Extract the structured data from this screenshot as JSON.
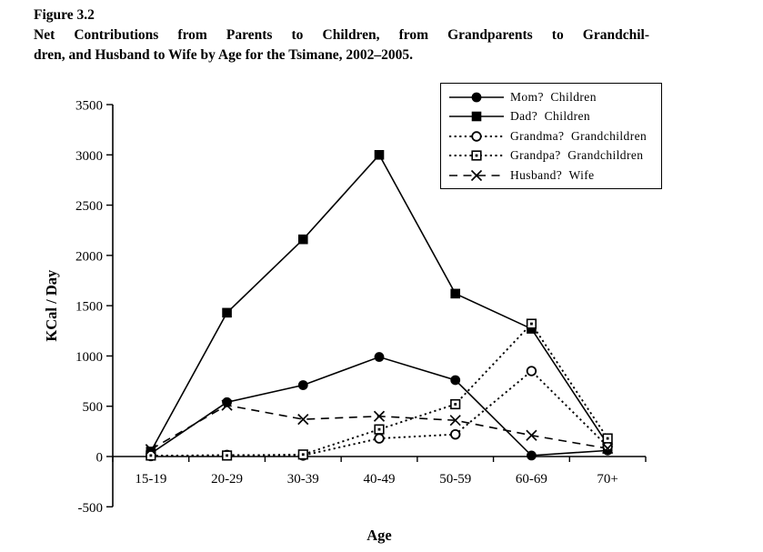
{
  "figure": {
    "label": "Figure 3.2",
    "caption_line1": "Net Contributions from Parents to Children, from Grandparents to Grandchil-",
    "caption_line2": "dren, and Husband to Wife by Age for the Tsimane, 2002–2005."
  },
  "chart_data": {
    "type": "line",
    "title": "Net Contributions from Parents to Children, from Grandparents to Grandchildren, and Husband to Wife by Age for the Tsimane, 2002–2005",
    "xlabel": "Age",
    "ylabel": "KCal / Day",
    "categories": [
      "15-19",
      "20-29",
      "30-39",
      "40-49",
      "50-59",
      "60-69",
      "70+"
    ],
    "ylim": [
      -500,
      3500
    ],
    "yticks": [
      -500,
      0,
      500,
      1000,
      1500,
      2000,
      2500,
      3000,
      3500
    ],
    "grid": false,
    "legend_position": "top-right",
    "color": "#000000",
    "background": "#ffffff",
    "series": [
      {
        "name": "Mom?  Children",
        "marker": "filled-circle",
        "line": "solid",
        "values": [
          30,
          540,
          710,
          990,
          760,
          10,
          60
        ]
      },
      {
        "name": "Dad?  Children",
        "marker": "filled-square",
        "line": "solid",
        "values": [
          50,
          1430,
          2160,
          3000,
          1620,
          1270,
          120
        ]
      },
      {
        "name": "Grandma?  Grandchildren",
        "marker": "open-circle",
        "line": "dotted",
        "values": [
          5,
          15,
          10,
          180,
          220,
          850,
          100
        ]
      },
      {
        "name": "Grandpa?  Grandchildren",
        "marker": "open-square-dot",
        "line": "dotted",
        "values": [
          10,
          10,
          20,
          270,
          520,
          1320,
          180
        ]
      },
      {
        "name": "Husband?  Wife",
        "marker": "x",
        "line": "dashed",
        "values": [
          70,
          510,
          370,
          400,
          360,
          210,
          80
        ]
      }
    ]
  }
}
